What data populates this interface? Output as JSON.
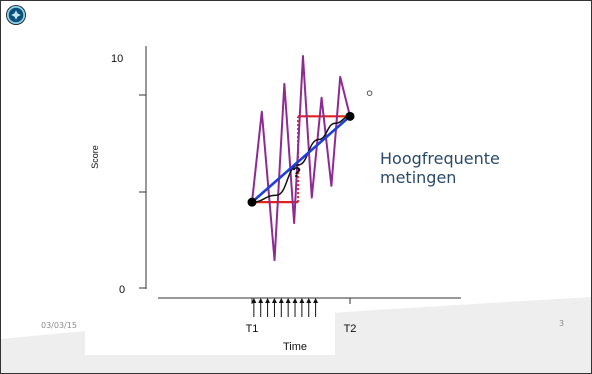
{
  "slide": {
    "date": "03/03/15",
    "page_number": "3",
    "annotation_line1": "Hoogfrequente",
    "annotation_line2": "metingen"
  },
  "colors": {
    "high_freq_line": "#8e2a94",
    "trend_line": "#1f3fd6",
    "step_line": "#e0221b",
    "step_dotted": "#e0221b",
    "curve_line": "#111111",
    "annotation": "#2a4a6a"
  },
  "chart_data": {
    "type": "line",
    "title": "",
    "xlabel": "Time",
    "ylabel": "Score",
    "ylim": [
      0,
      10
    ],
    "y_ticks": [
      "0",
      "10"
    ],
    "x_tick_labels": [
      {
        "label": "T1",
        "x": 1.0
      },
      {
        "label": "T2",
        "x": 2.0
      }
    ],
    "endpoints": [
      {
        "x": 1.0,
        "y": 3.7
      },
      {
        "x": 2.0,
        "y": 7.4
      }
    ],
    "question_mark": "?",
    "open_marker": {
      "x": 2.2,
      "y": 8.4
    },
    "arrow_times": [
      1.07,
      1.14,
      1.21,
      1.28,
      1.35,
      1.42,
      1.49,
      1.56,
      1.63,
      1.7
    ],
    "series": [
      {
        "style": "zigzag",
        "x": [
          1.0,
          1.1,
          1.23,
          1.33,
          1.43,
          1.52,
          1.61,
          1.71,
          1.81,
          1.9,
          2.0
        ],
        "y": [
          3.7,
          7.6,
          1.2,
          8.8,
          2.8,
          10.0,
          3.9,
          8.2,
          4.4,
          9.1,
          7.4
        ]
      },
      {
        "style": "straight",
        "x": [
          1.0,
          2.0
        ],
        "y": [
          3.7,
          7.4
        ]
      },
      {
        "style": "step",
        "x": [
          1.0,
          1.47,
          1.47,
          2.0
        ],
        "y": [
          3.7,
          3.7,
          7.4,
          7.4
        ]
      },
      {
        "style": "curve",
        "x": [
          1.0,
          1.25,
          1.47,
          1.68,
          1.85,
          2.0
        ],
        "y": [
          3.7,
          4.0,
          5.3,
          6.4,
          7.1,
          7.4
        ]
      }
    ]
  }
}
